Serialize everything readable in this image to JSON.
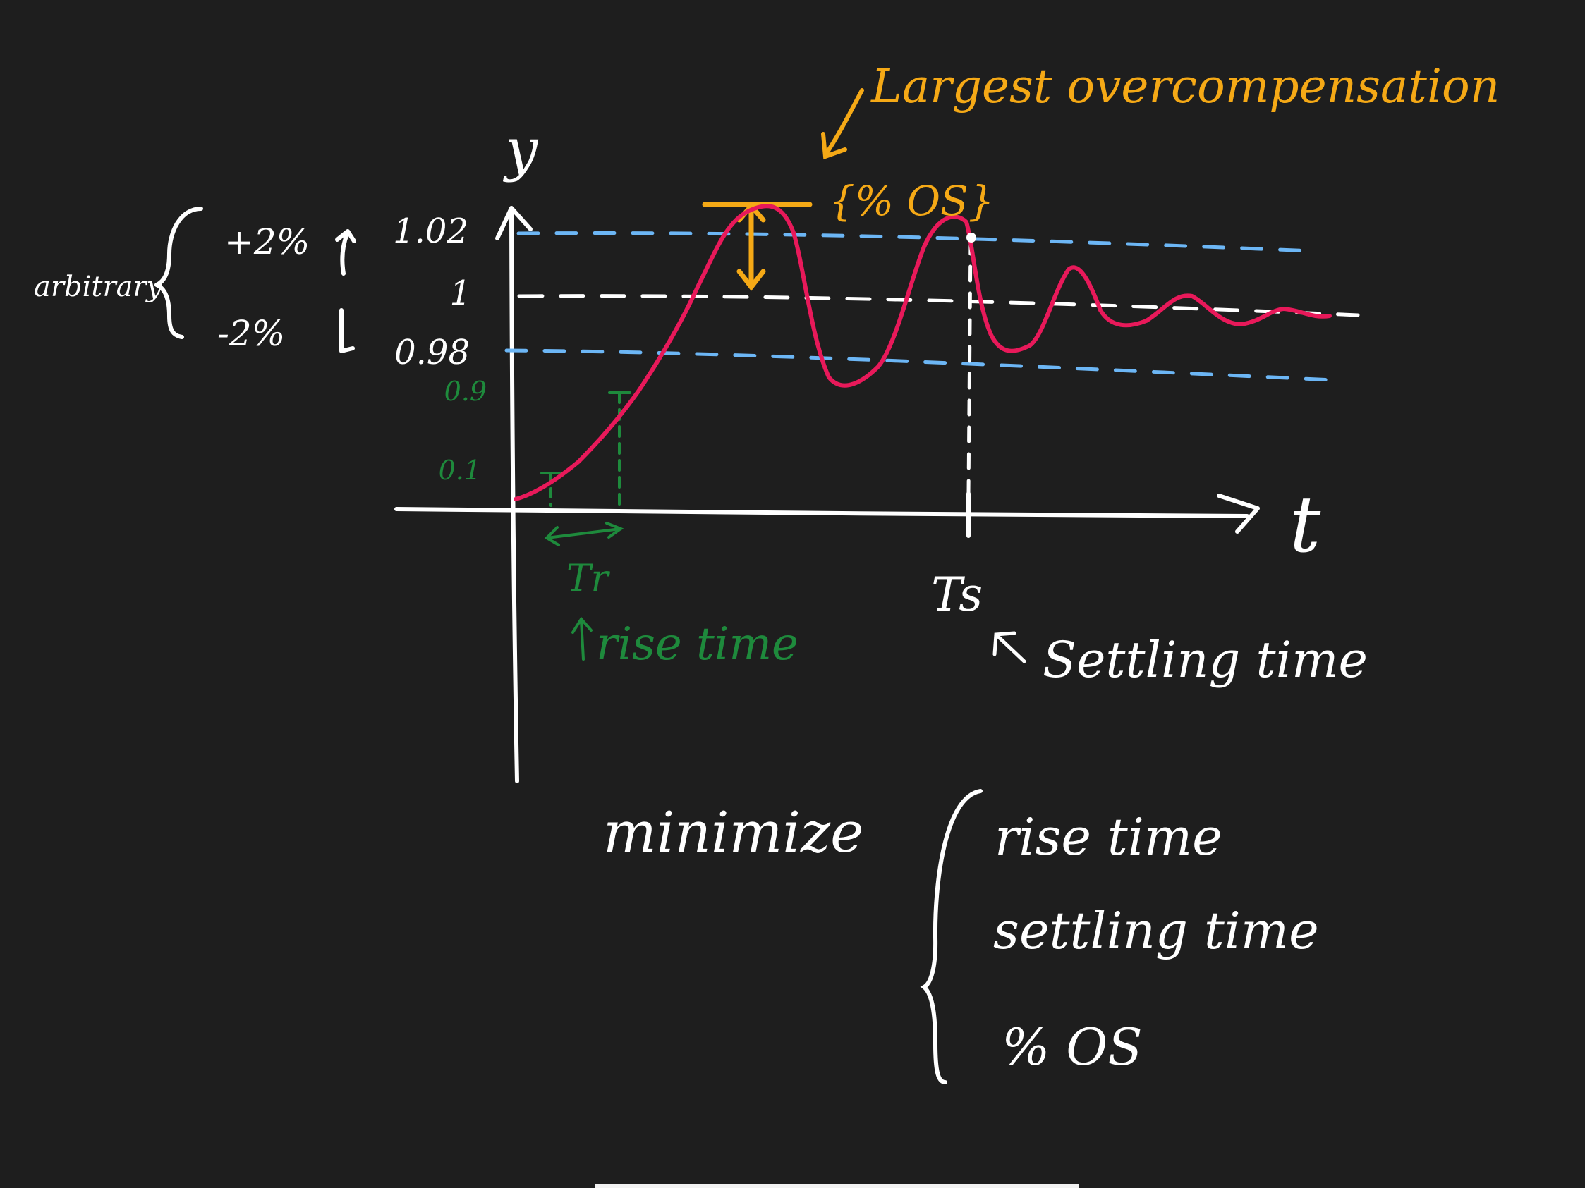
{
  "colors": {
    "background": "#1e1e1e",
    "ink": "#ffffff",
    "response": "#e8195a",
    "tolerance": "#6cb6f5",
    "rise": "#1e8a3c",
    "overshoot": "#f5a916"
  },
  "axes": {
    "y_label": "y",
    "x_label": "t"
  },
  "ticks": {
    "upper": "1.02",
    "target": "1",
    "lower": "0.98",
    "p90": "0.9",
    "p10": "0.1"
  },
  "tolerance_note": {
    "label": "arbitrary",
    "plus": "+2%",
    "minus": "-2%"
  },
  "annotations": {
    "overshoot_title": "Largest overcompensation",
    "overshoot_tag": "{% OS}",
    "rise_symbol": "Tr",
    "rise_caption": "rise time",
    "settling_symbol": "Ts",
    "settling_caption": "Settling time"
  },
  "goal": {
    "verb": "minimize",
    "items": [
      "rise time",
      "settling time",
      "% OS"
    ]
  }
}
